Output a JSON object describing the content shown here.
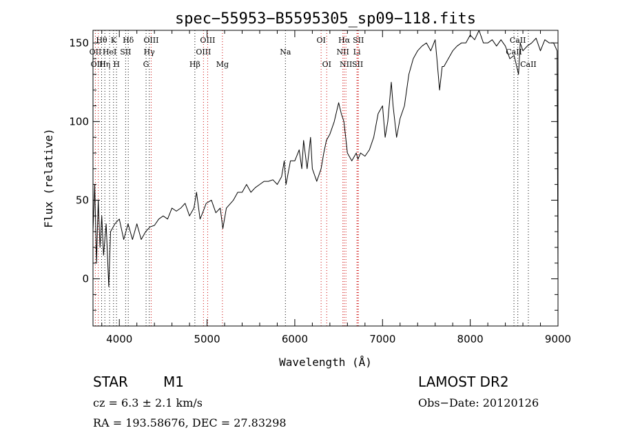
{
  "chart_data": {
    "type": "line",
    "title": "spec−55953−B5595305_sp09−118.fits",
    "xlabel": "Wavelength (Å)",
    "ylabel": "Flux (relative)",
    "xlim": [
      3700,
      9000
    ],
    "ylim": [
      -30,
      158
    ],
    "xticks": [
      4000,
      5000,
      6000,
      7000,
      8000,
      9000
    ],
    "yticks": [
      0,
      50,
      100,
      150
    ],
    "grid": false,
    "series": [
      {
        "x": [
          3700,
          3720,
          3740,
          3760,
          3780,
          3800,
          3820,
          3850,
          3880,
          3900,
          3950,
          4000,
          4050,
          4100,
          4150,
          4200,
          4250,
          4300,
          4350,
          4400,
          4450,
          4500,
          4550,
          4600,
          4650,
          4700,
          4750,
          4800,
          4850,
          4880,
          4920,
          4950,
          4990,
          5050,
          5100,
          5150,
          5180,
          5220,
          5300,
          5350,
          5400,
          5450,
          5500,
          5550,
          5600,
          5650,
          5700,
          5750,
          5800,
          5850,
          5880,
          5900,
          5950,
          6000,
          6050,
          6080,
          6100,
          6140,
          6180,
          6200,
          6250,
          6300,
          6330,
          6360,
          6400,
          6450,
          6500,
          6530,
          6560,
          6580,
          6600,
          6650,
          6700,
          6720,
          6750,
          6800,
          6850,
          6900,
          6950,
          7000,
          7030,
          7060,
          7100,
          7120,
          7160,
          7200,
          7250,
          7300,
          7350,
          7400,
          7450,
          7500,
          7550,
          7600,
          7620,
          7650,
          7680,
          7700,
          7750,
          7800,
          7850,
          7900,
          7950,
          8000,
          8050,
          8100,
          8150,
          8200,
          8250,
          8300,
          8350,
          8400,
          8450,
          8500,
          8530,
          8550,
          8570,
          8600,
          8650,
          8700,
          8750,
          8800,
          8850,
          8900,
          8950,
          8990,
          9000
        ],
        "y": [
          30,
          60,
          10,
          50,
          20,
          40,
          15,
          35,
          -5,
          30,
          35,
          38,
          25,
          35,
          25,
          35,
          25,
          30,
          33,
          34,
          38,
          40,
          38,
          45,
          43,
          45,
          48,
          40,
          45,
          55,
          38,
          42,
          48,
          50,
          42,
          45,
          32,
          45,
          50,
          55,
          55,
          60,
          55,
          58,
          60,
          62,
          62,
          63,
          60,
          65,
          75,
          60,
          75,
          75,
          82,
          70,
          88,
          70,
          90,
          70,
          62,
          70,
          80,
          88,
          92,
          100,
          112,
          105,
          100,
          90,
          80,
          75,
          80,
          76,
          80,
          78,
          82,
          90,
          105,
          110,
          90,
          100,
          125,
          110,
          90,
          102,
          110,
          130,
          140,
          145,
          148,
          150,
          145,
          152,
          140,
          120,
          135,
          135,
          140,
          145,
          148,
          150,
          150,
          155,
          152,
          158,
          150,
          150,
          152,
          148,
          152,
          148,
          140,
          142,
          135,
          130,
          150,
          145,
          148,
          150,
          153,
          145,
          152,
          150,
          150,
          145,
          0
        ]
      }
    ],
    "line_labels": [
      {
        "text": "Hθ",
        "x": 3798,
        "row": 1,
        "color": "#000000"
      },
      {
        "text": "K",
        "x": 3934,
        "row": 1,
        "color": "#000000"
      },
      {
        "text": "Hδ",
        "x": 4102,
        "row": 1,
        "color": "#000000"
      },
      {
        "text": "OIII",
        "x": 4363,
        "row": 1,
        "color": "#000000"
      },
      {
        "text": "OIII",
        "x": 5007,
        "row": 1,
        "color": "#000000"
      },
      {
        "text": "OI",
        "x": 6300,
        "row": 1,
        "color": "#000000"
      },
      {
        "text": "Hα",
        "x": 6563,
        "row": 1,
        "color": "#000000"
      },
      {
        "text": "SII",
        "x": 6725,
        "row": 1,
        "color": "#000000"
      },
      {
        "text": "CaII",
        "x": 8542,
        "row": 1,
        "color": "#000000"
      },
      {
        "text": "OII",
        "x": 3727,
        "row": 2,
        "color": "#000000"
      },
      {
        "text": "HeI",
        "x": 3889,
        "row": 2,
        "color": "#000000"
      },
      {
        "text": "SII",
        "x": 4072,
        "row": 2,
        "color": "#000000"
      },
      {
        "text": "Hγ",
        "x": 4341,
        "row": 2,
        "color": "#000000"
      },
      {
        "text": "OIII",
        "x": 4959,
        "row": 2,
        "color": "#000000"
      },
      {
        "text": "Na",
        "x": 5893,
        "row": 2,
        "color": "#000000"
      },
      {
        "text": "NII",
        "x": 6548,
        "row": 2,
        "color": "#000000"
      },
      {
        "text": "Li",
        "x": 6708,
        "row": 2,
        "color": "#000000"
      },
      {
        "text": "CaII",
        "x": 8498,
        "row": 2,
        "color": "#000000"
      },
      {
        "text": "OIII",
        "x": 3760,
        "row": 3,
        "color": "#000000"
      },
      {
        "text": "Hη",
        "x": 3835,
        "row": 3,
        "color": "#000000"
      },
      {
        "text": "H",
        "x": 3968,
        "row": 3,
        "color": "#000000"
      },
      {
        "text": "G",
        "x": 4305,
        "row": 3,
        "color": "#000000"
      },
      {
        "text": "Hβ",
        "x": 4861,
        "row": 3,
        "color": "#000000"
      },
      {
        "text": "Mg",
        "x": 5175,
        "row": 3,
        "color": "#000000"
      },
      {
        "text": "OI",
        "x": 6364,
        "row": 3,
        "color": "#000000"
      },
      {
        "text": "NII",
        "x": 6583,
        "row": 3,
        "color": "#000000"
      },
      {
        "text": "SII",
        "x": 6716,
        "row": 3,
        "color": "#000000"
      },
      {
        "text": "CaII",
        "x": 8662,
        "row": 3,
        "color": "#000000"
      }
    ],
    "line_markers": [
      {
        "x": 3727,
        "color": "#cc0000"
      },
      {
        "x": 3760,
        "color": "#cc0000"
      },
      {
        "x": 3798,
        "color": "#000000"
      },
      {
        "x": 3835,
        "color": "#000000"
      },
      {
        "x": 3889,
        "color": "#000000"
      },
      {
        "x": 3934,
        "color": "#000000"
      },
      {
        "x": 3968,
        "color": "#000000"
      },
      {
        "x": 4072,
        "color": "#000000"
      },
      {
        "x": 4102,
        "color": "#000000"
      },
      {
        "x": 4305,
        "color": "#000000"
      },
      {
        "x": 4341,
        "color": "#000000"
      },
      {
        "x": 4363,
        "color": "#cc0000"
      },
      {
        "x": 4861,
        "color": "#000000"
      },
      {
        "x": 4959,
        "color": "#cc0000"
      },
      {
        "x": 5007,
        "color": "#cc0000"
      },
      {
        "x": 5175,
        "color": "#cc0000"
      },
      {
        "x": 5893,
        "color": "#000000"
      },
      {
        "x": 6300,
        "color": "#cc0000"
      },
      {
        "x": 6364,
        "color": "#cc0000"
      },
      {
        "x": 6548,
        "color": "#cc0000"
      },
      {
        "x": 6563,
        "color": "#cc0000"
      },
      {
        "x": 6583,
        "color": "#cc0000"
      },
      {
        "x": 6708,
        "color": "#cc0000"
      },
      {
        "x": 6716,
        "color": "#cc0000"
      },
      {
        "x": 6725,
        "color": "#cc0000"
      },
      {
        "x": 8498,
        "color": "#000000"
      },
      {
        "x": 8542,
        "color": "#000000"
      },
      {
        "x": 8662,
        "color": "#000000"
      }
    ]
  },
  "info": {
    "object_class": "STAR",
    "subclass": "M1",
    "survey": "LAMOST DR2",
    "redshift": "cz = 6.3 ± 2.1 km/s",
    "obs_date": "Obs−Date: 20120126",
    "coords": "RA = 193.58676, DEC =  27.83298"
  }
}
